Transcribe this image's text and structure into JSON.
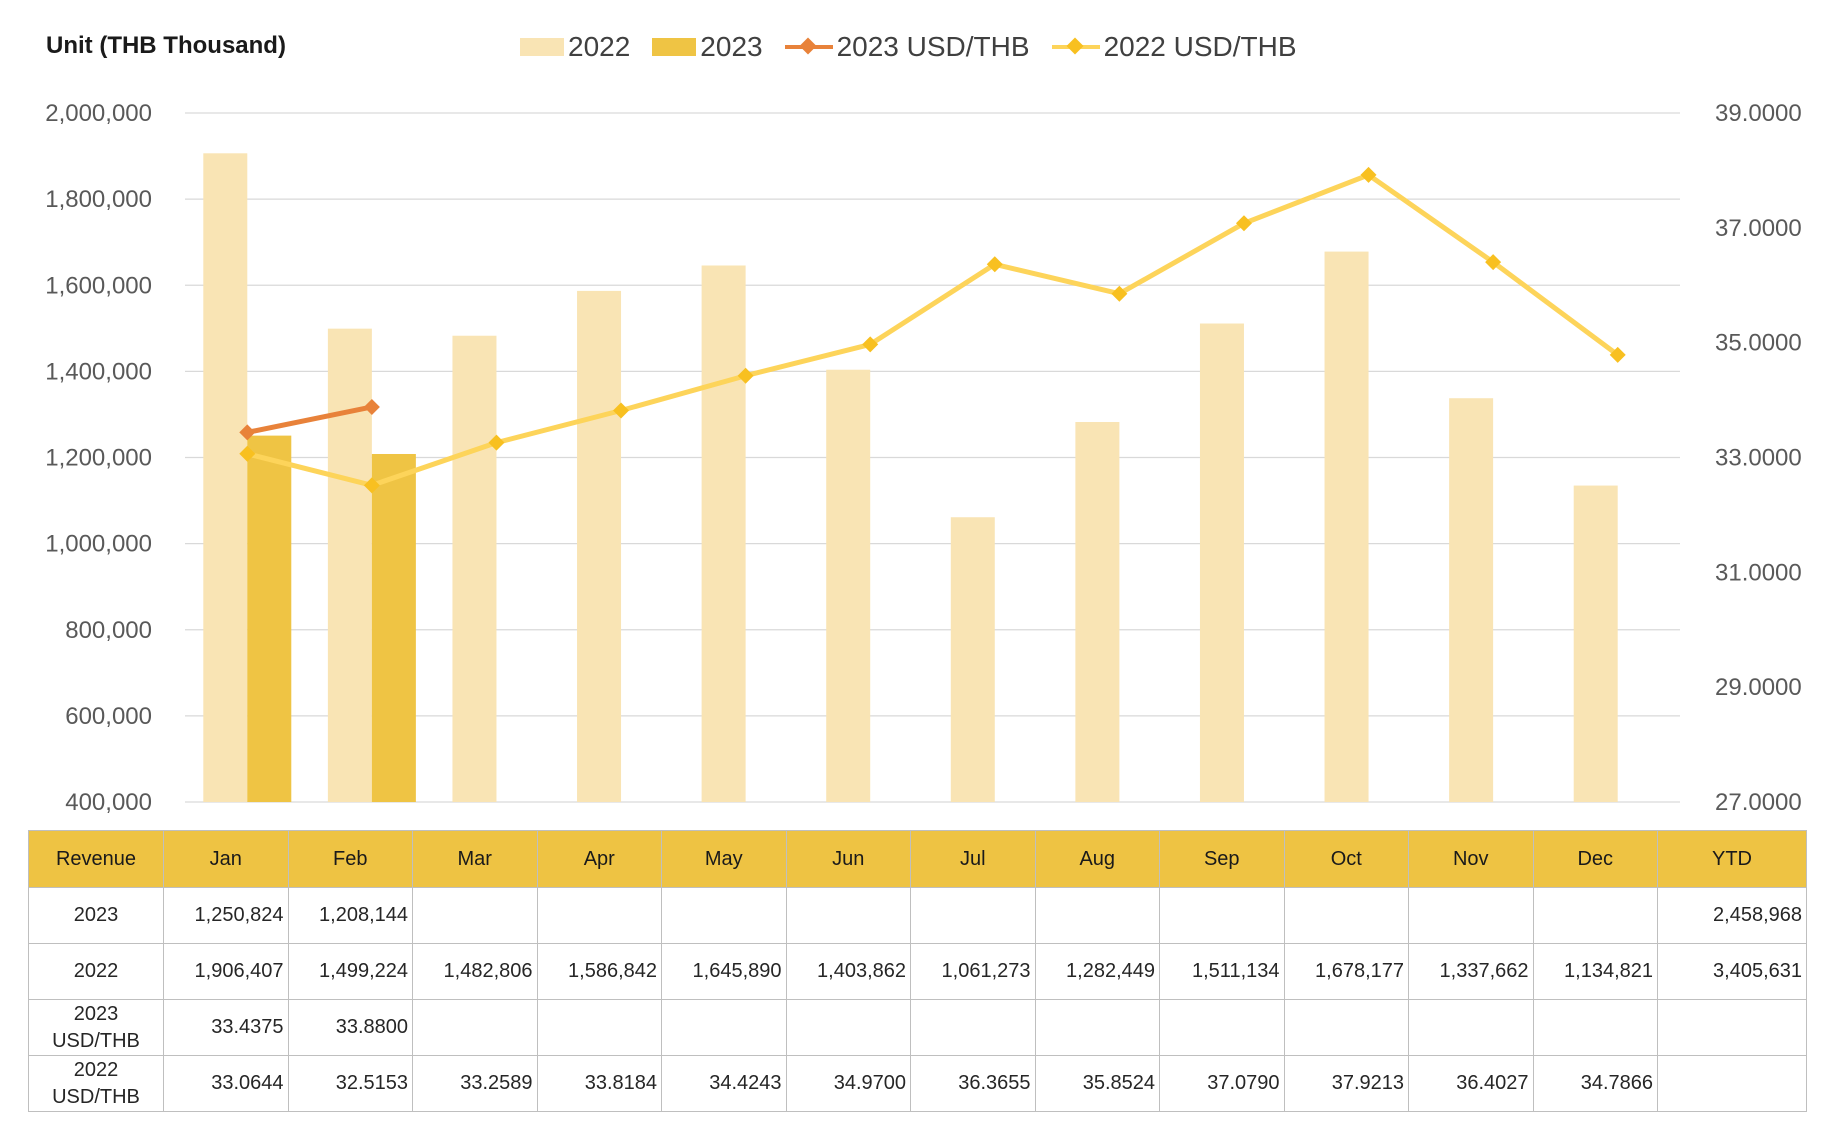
{
  "colors": {
    "bar_2022": "#f9e4b4",
    "bar_2023": "#efc444",
    "line_2023": "#e8823a",
    "line_2022": "#fdd45a",
    "marker_2022": "#f8c020",
    "grid": "#d9d9d9",
    "table_header": "#eec343"
  },
  "chart": {
    "unit_label": "Unit (THB  Thousand)",
    "legend": [
      "2022",
      "2023",
      "2023 USD/THB",
      "2022 USD/THB"
    ]
  },
  "chart_data": {
    "type": "bar",
    "categories": [
      "Jan",
      "Feb",
      "Mar",
      "Apr",
      "May",
      "Jun",
      "Jul",
      "Aug",
      "Sep",
      "Oct",
      "Nov",
      "Dec"
    ],
    "series": [
      {
        "name": "2022",
        "type": "bar",
        "axis": "left",
        "values": [
          1906407,
          1499224,
          1482806,
          1586842,
          1645890,
          1403862,
          1061273,
          1282449,
          1511134,
          1678177,
          1337662,
          1134821
        ]
      },
      {
        "name": "2023",
        "type": "bar",
        "axis": "left",
        "values": [
          1250824,
          1208144,
          null,
          null,
          null,
          null,
          null,
          null,
          null,
          null,
          null,
          null
        ]
      },
      {
        "name": "2023 USD/THB",
        "type": "line",
        "axis": "right",
        "values": [
          33.4375,
          33.88,
          null,
          null,
          null,
          null,
          null,
          null,
          null,
          null,
          null,
          null
        ]
      },
      {
        "name": "2022 USD/THB",
        "type": "line",
        "axis": "right",
        "values": [
          33.0644,
          32.5153,
          33.2589,
          33.8184,
          34.4243,
          34.97,
          36.3655,
          35.8524,
          37.079,
          37.9213,
          36.4027,
          34.7866
        ]
      }
    ],
    "y_left": {
      "min": 400000,
      "max": 2000000,
      "step": 200000,
      "ticks": [
        "2,000,000",
        "1,800,000",
        "1,600,000",
        "1,400,000",
        "1,200,000",
        "1,000,000",
        "800,000",
        "600,000",
        "400,000"
      ]
    },
    "y_right": {
      "min": 27,
      "max": 39,
      "step": 2,
      "ticks": [
        "39.0000",
        "37.0000",
        "35.0000",
        "33.0000",
        "31.0000",
        "29.0000",
        "27.0000"
      ]
    },
    "grid": true,
    "legend_position": "top-center"
  },
  "table": {
    "headers": [
      "Revenue",
      "Jan",
      "Feb",
      "Mar",
      "Apr",
      "May",
      "Jun",
      "Jul",
      "Aug",
      "Sep",
      "Oct",
      "Nov",
      "Dec",
      "YTD"
    ],
    "rows": [
      {
        "label": "2023",
        "cells": [
          "1,250,824",
          "1,208,144",
          "",
          "",
          "",
          "",
          "",
          "",
          "",
          "",
          "",
          ""
        ],
        "ytd": "2,458,968"
      },
      {
        "label": "2022",
        "cells": [
          "1,906,407",
          "1,499,224",
          "1,482,806",
          "1,586,842",
          "1,645,890",
          "1,403,862",
          "1,061,273",
          "1,282,449",
          "1,511,134",
          "1,678,177",
          "1,337,662",
          "1,134,821"
        ],
        "ytd": "3,405,631"
      },
      {
        "label": "2023 USD/THB",
        "cells": [
          "33.4375",
          "33.8800",
          "",
          "",
          "",
          "",
          "",
          "",
          "",
          "",
          "",
          ""
        ],
        "ytd": ""
      },
      {
        "label": "2022 USD/THB",
        "cells": [
          "33.0644",
          "32.5153",
          "33.2589",
          "33.8184",
          "34.4243",
          "34.9700",
          "36.3655",
          "35.8524",
          "37.0790",
          "37.9213",
          "36.4027",
          "34.7866"
        ],
        "ytd": ""
      }
    ]
  }
}
